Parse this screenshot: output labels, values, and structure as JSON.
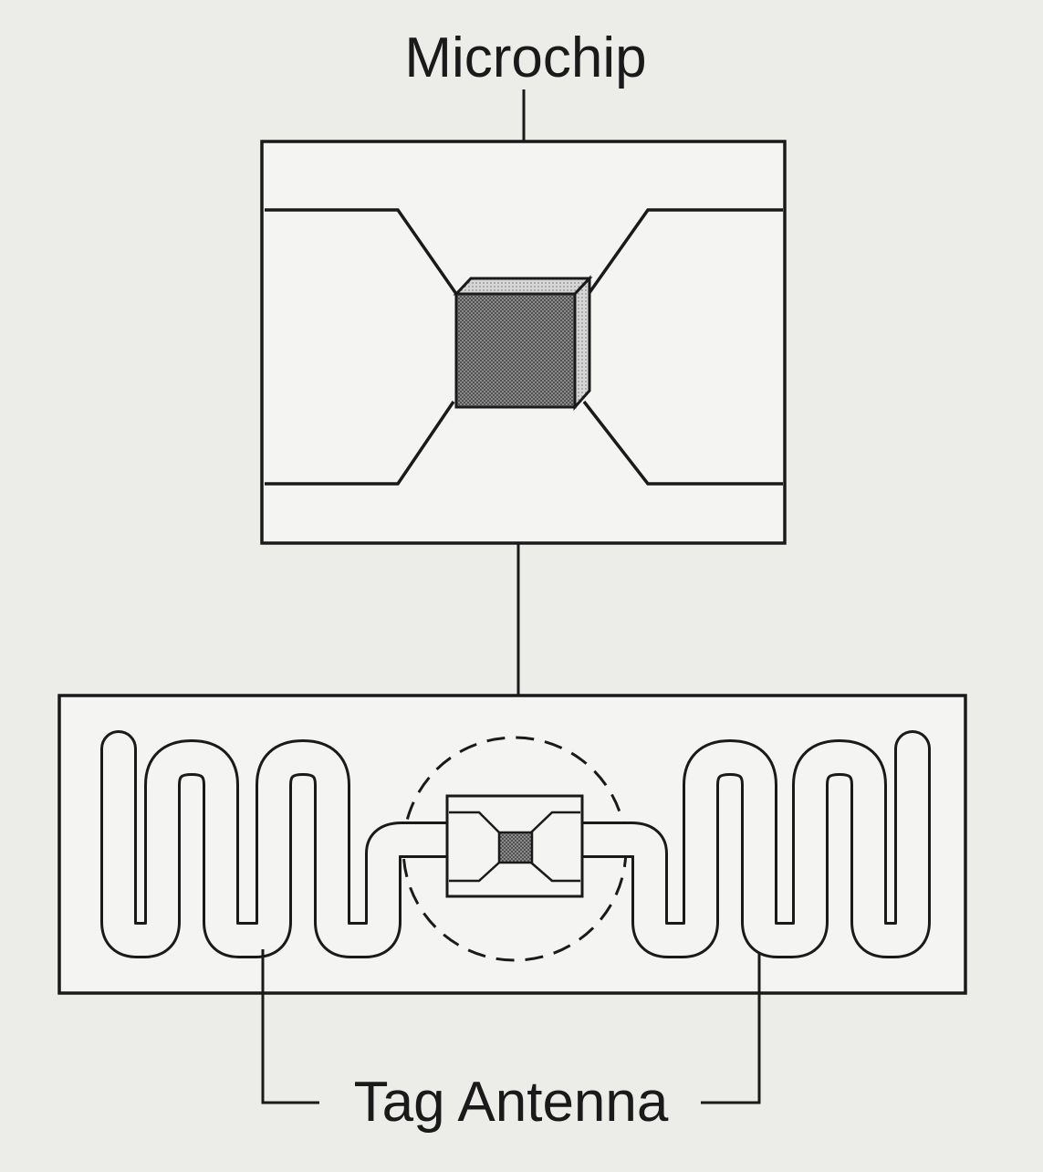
{
  "labels": {
    "microchip": "Microchip",
    "tag_antenna": "Tag Antenna"
  },
  "colors": {
    "background": "#ecece9",
    "ink": "#1a1a1a",
    "chip_front": "#7a7a7a",
    "chip_side": "#b8b8b8",
    "chip_top": "#d2d2d2"
  }
}
